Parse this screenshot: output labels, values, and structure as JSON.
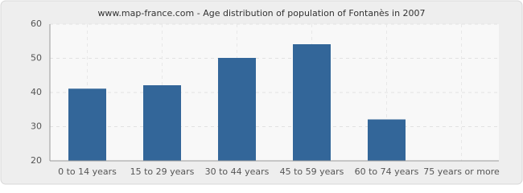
{
  "chart_data": {
    "type": "bar",
    "title": "www.map-france.com - Age distribution of population of Fontanès in 2007",
    "categories": [
      "0 to 14 years",
      "15 to 29 years",
      "30 to 44 years",
      "45 to 59 years",
      "60 to 74 years",
      "75 years or more"
    ],
    "values": [
      41,
      42,
      50,
      54,
      32,
      20
    ],
    "color": "#336699",
    "ylim": [
      20,
      60
    ],
    "yticks": [
      20,
      30,
      40,
      50,
      60
    ],
    "grid": true
  }
}
